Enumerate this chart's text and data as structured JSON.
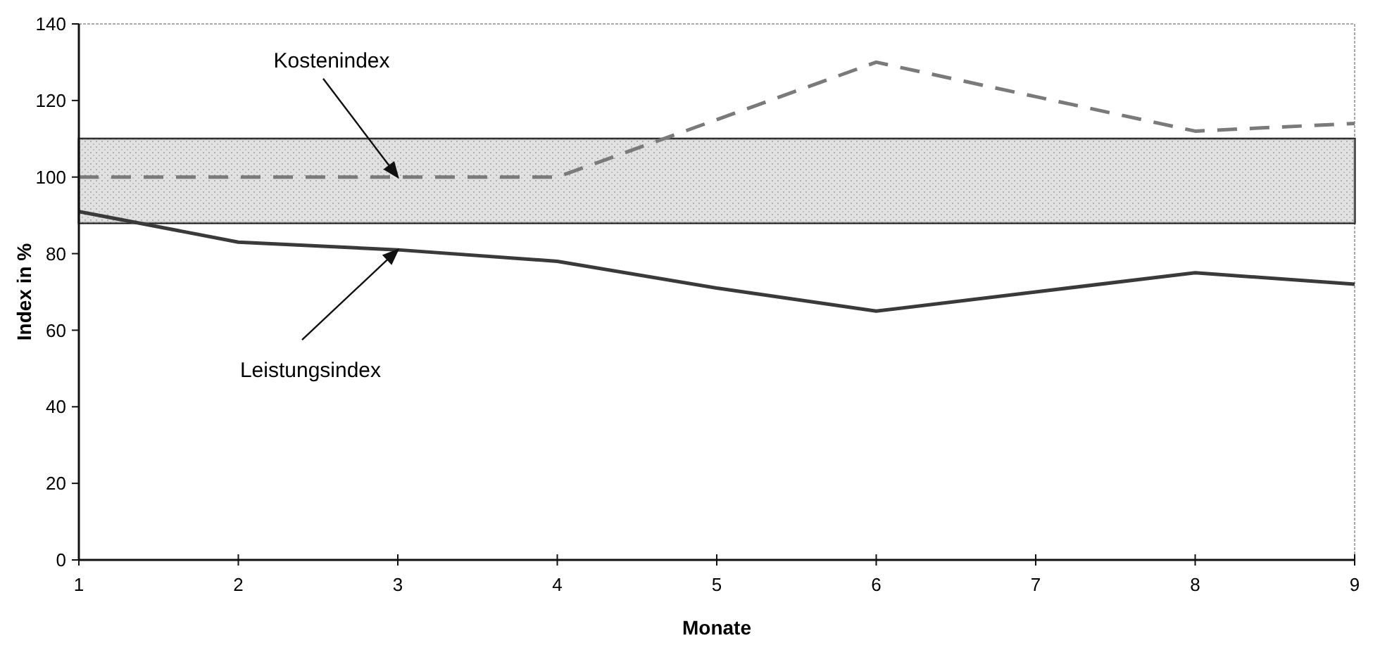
{
  "chart_data": {
    "type": "line",
    "xlabel": "Monate",
    "ylabel": "Index in %",
    "x": [
      1,
      2,
      3,
      4,
      5,
      6,
      7,
      8,
      9
    ],
    "series": [
      {
        "color": "#7a7a7a",
        "line_style": "dashed",
        "values": [
          100,
          100,
          100,
          100,
          115,
          130,
          121,
          112,
          114
        ]
      },
      {
        "color": "#3a3a3a",
        "line_style": "solid",
        "values": [
          91,
          83,
          81,
          78,
          71,
          65,
          70,
          75,
          72
        ]
      }
    ],
    "xlim": [
      1,
      9
    ],
    "xticks": [
      1,
      2,
      3,
      4,
      5,
      6,
      7,
      8,
      9
    ],
    "ylim": [
      0,
      140
    ],
    "yticks": [
      0,
      20,
      40,
      60,
      80,
      100,
      120,
      140
    ],
    "bands": [
      {
        "axis": "y",
        "from": 88,
        "to": 110,
        "color": "#d6d6d6"
      }
    ],
    "annotations": [
      "Kostenindex",
      "Leistungsindex"
    ],
    "grid": false,
    "marker": "none"
  }
}
